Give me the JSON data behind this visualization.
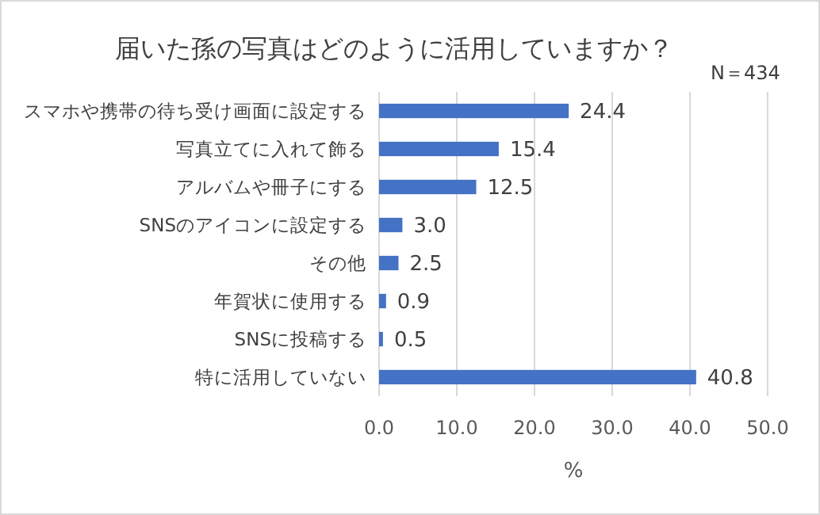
{
  "chart_data": {
    "type": "bar",
    "orientation": "horizontal",
    "title": "届いた孫の写真はどのように活用していますか？",
    "annotations": [
      "N＝434"
    ],
    "xlabel": "%",
    "categories": [
      "スマホや携帯の待ち受け画面に設定する",
      "写真立てに入れて飾る",
      "アルバムや冊子にする",
      "SNSのアイコンに設定する",
      "その他",
      "年賀状に使用する",
      "SNSに投稿する",
      "特に活用していない"
    ],
    "values": [
      24.4,
      15.4,
      12.5,
      3.0,
      2.5,
      0.9,
      0.5,
      40.8
    ],
    "value_labels": [
      "24.4",
      "15.4",
      "12.5",
      "3.0",
      "2.5",
      "0.9",
      "0.5",
      "40.8"
    ],
    "color": "#4472c4",
    "xlim": [
      0,
      50
    ],
    "xticks": [
      {
        "value": 0,
        "label": "0.0"
      },
      {
        "value": 10,
        "label": "10.0"
      },
      {
        "value": 20,
        "label": "20.0"
      },
      {
        "value": 30,
        "label": "30.0"
      },
      {
        "value": 40,
        "label": "40.0"
      },
      {
        "value": 50,
        "label": "50.0"
      }
    ],
    "grid": "x"
  }
}
